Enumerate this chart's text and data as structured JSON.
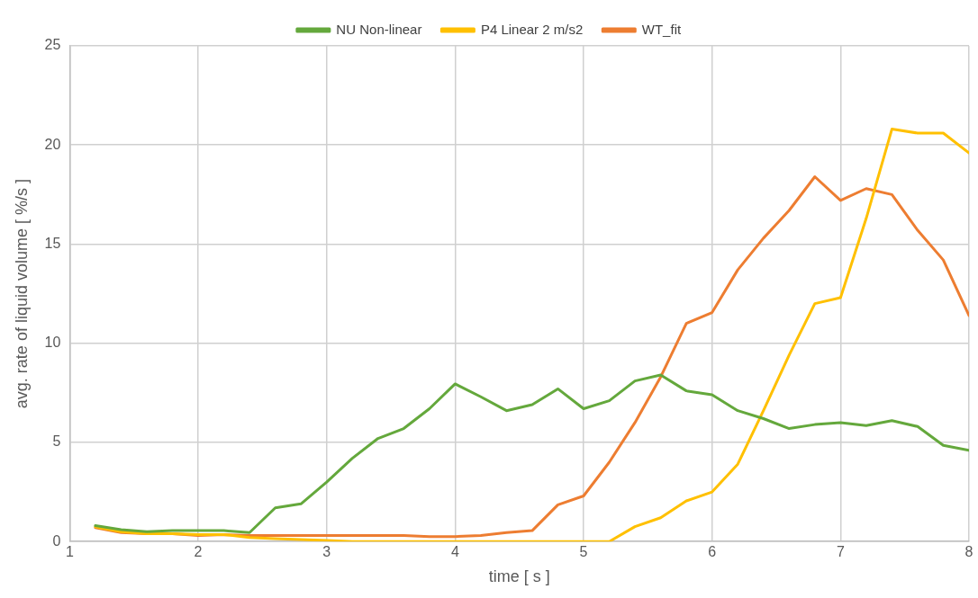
{
  "chart_data": {
    "type": "line",
    "xlabel": "time [ s ]",
    "ylabel": "avg. rate of liquid volume [ %/s ]",
    "x": [
      1.2,
      1.4,
      1.6,
      1.8,
      2.0,
      2.2,
      2.4,
      2.6,
      2.8,
      3.0,
      3.2,
      3.4,
      3.6,
      3.8,
      4.0,
      4.2,
      4.4,
      4.6,
      4.8,
      5.0,
      5.2,
      5.4,
      5.6,
      5.8,
      6.0,
      6.2,
      6.4,
      6.6,
      6.8,
      7.0,
      7.2,
      7.4,
      7.6,
      7.8,
      8.0
    ],
    "series": [
      {
        "name": "NU Non-linear",
        "color": "#64a83c",
        "values": [
          0.8,
          0.6,
          0.5,
          0.55,
          0.55,
          0.55,
          0.45,
          1.7,
          1.9,
          3.0,
          4.2,
          5.2,
          5.7,
          6.7,
          7.95,
          7.3,
          6.6,
          6.9,
          7.7,
          6.7,
          7.1,
          8.1,
          8.4,
          7.6,
          7.4,
          6.6,
          6.2,
          5.7,
          5.9,
          6.0,
          5.85,
          6.1,
          5.8,
          4.85,
          4.6
        ]
      },
      {
        "name": "P4 Linear 2 m/s2",
        "color": "#ffc000",
        "values": [
          0.75,
          0.5,
          0.4,
          0.4,
          0.35,
          0.35,
          0.2,
          0.15,
          0.1,
          0.05,
          0,
          0,
          0,
          0,
          0,
          0,
          0,
          0,
          0,
          0,
          0,
          0.75,
          1.2,
          2.05,
          2.5,
          3.9,
          6.6,
          9.4,
          12.0,
          12.3,
          16.3,
          20.8,
          20.6,
          20.6,
          19.6
        ]
      },
      {
        "name": "WT_fit",
        "color": "#ed7d31",
        "values": [
          0.7,
          0.45,
          0.4,
          0.4,
          0.3,
          0.35,
          0.3,
          0.3,
          0.3,
          0.3,
          0.3,
          0.3,
          0.3,
          0.25,
          0.25,
          0.3,
          0.45,
          0.55,
          1.85,
          2.3,
          4.0,
          6.0,
          8.3,
          11.0,
          11.55,
          13.7,
          15.3,
          16.7,
          18.4,
          17.2,
          17.8,
          17.5,
          15.7,
          14.2,
          11.4
        ]
      }
    ],
    "xlim": [
      1,
      8
    ],
    "xticks": [
      1,
      2,
      3,
      4,
      5,
      6,
      7,
      8
    ],
    "ylim": [
      0,
      25
    ],
    "yticks": [
      0,
      5,
      10,
      15,
      20,
      25
    ],
    "grid": true,
    "legend": "top",
    "marker": "none",
    "line_style": "solid"
  }
}
